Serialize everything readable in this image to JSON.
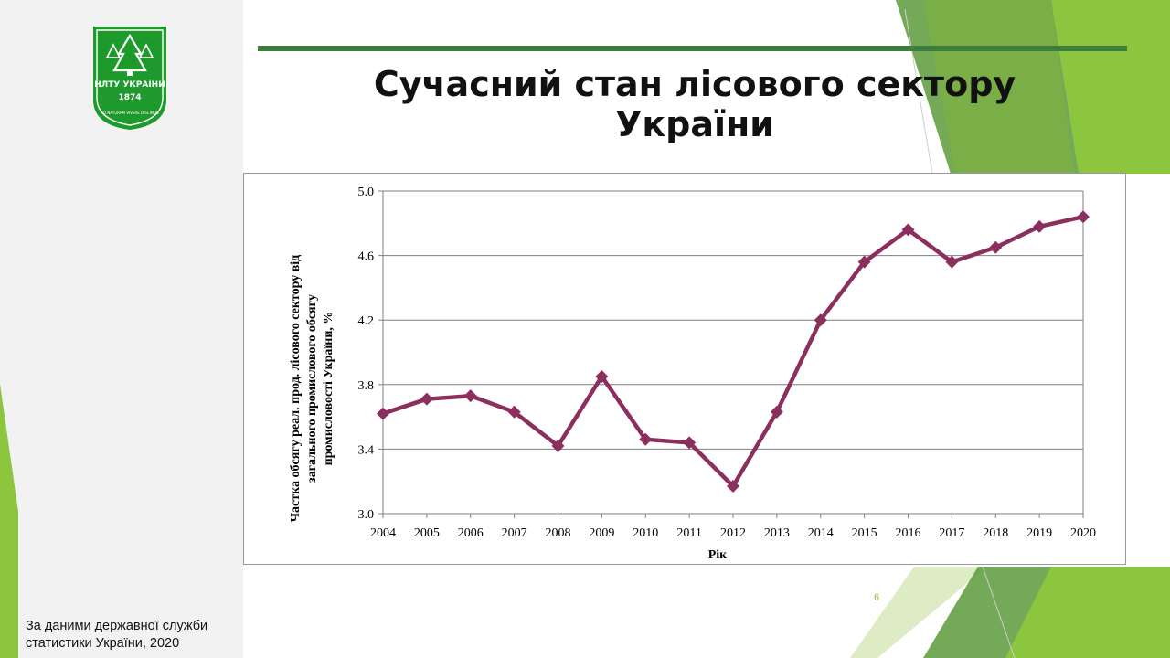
{
  "slide": {
    "title_line1": "Сучасний стан лісового сектору",
    "title_line2": "України",
    "page_number": "6",
    "source_line1": "За даними державної служби",
    "source_line2": "статистики України, 2020"
  },
  "logo": {
    "text": "НЛТУ УКРАЇНИ",
    "year": "1874",
    "motto": "AD NATURAM VIVERE DISCIMUS",
    "color": "#1e9a2c"
  },
  "colors": {
    "series": "#8b2f5e",
    "accent_bar": "#3f7d3c",
    "deco_green_dark": "#5b9a3a",
    "deco_green_light": "#8cc63f"
  },
  "chart_data": {
    "type": "line",
    "x": [
      "2004",
      "2005",
      "2006",
      "2007",
      "2008",
      "2009",
      "2010",
      "2011",
      "2012",
      "2013",
      "2014",
      "2015",
      "2016",
      "2017",
      "2018",
      "2019",
      "2020"
    ],
    "series": [
      {
        "values": [
          3.62,
          3.71,
          3.73,
          3.63,
          3.42,
          3.85,
          3.46,
          3.44,
          3.17,
          3.63,
          4.2,
          4.56,
          4.76,
          4.56,
          4.65,
          4.78,
          4.84
        ]
      }
    ],
    "xlabel": "Рік",
    "ylabel_lines": [
      "Частка обсягу реал. прод. лісового сектору від",
      "загального промислового обсягу",
      "промисловості України, %"
    ],
    "ylim": [
      3.0,
      5.0
    ],
    "yticks": [
      3.0,
      3.4,
      3.8,
      4.2,
      4.6,
      5.0
    ],
    "yticks_labels": [
      "3.0",
      "3.4",
      "3.8",
      "4.2",
      "4.6",
      "5.0"
    ],
    "grid": true,
    "marker": "diamond"
  }
}
